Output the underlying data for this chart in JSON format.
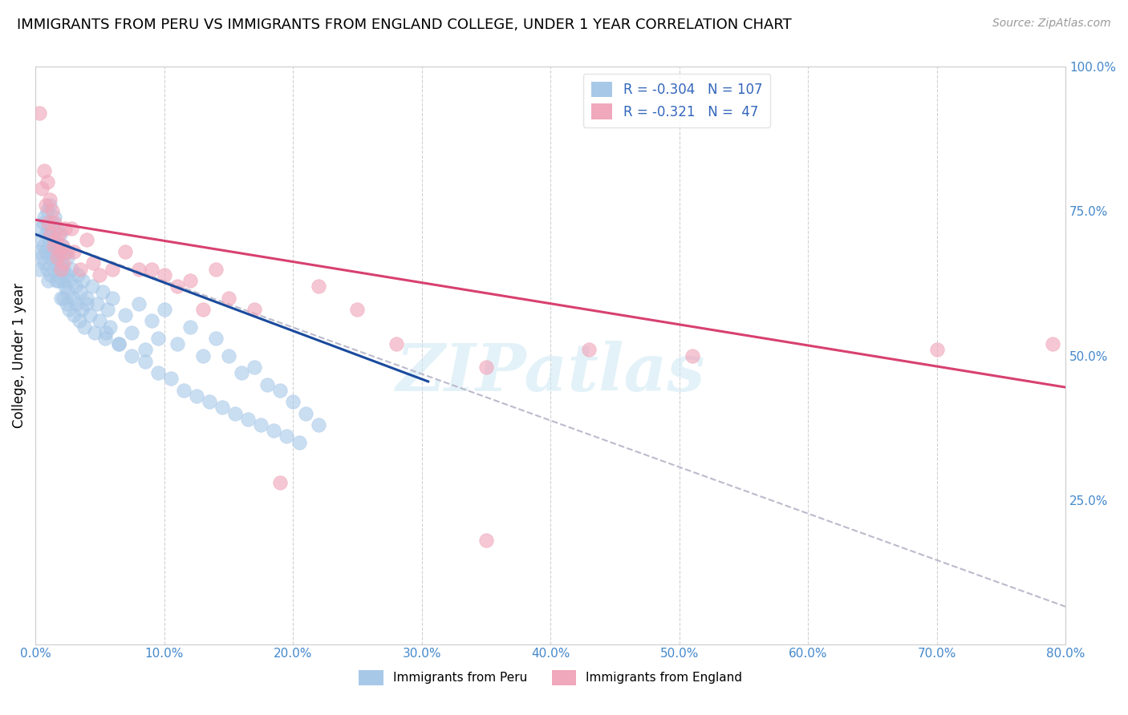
{
  "title": "IMMIGRANTS FROM PERU VS IMMIGRANTS FROM ENGLAND COLLEGE, UNDER 1 YEAR CORRELATION CHART",
  "source": "Source: ZipAtlas.com",
  "ylabel": "College, Under 1 year",
  "legend_label1": "Immigrants from Peru",
  "legend_label2": "Immigrants from England",
  "R1": -0.304,
  "N1": 107,
  "R2": -0.321,
  "N2": 47,
  "color_blue": "#A8C8E8",
  "color_pink": "#F0A8BC",
  "color_trend_blue": "#1A4A9C",
  "color_trend_pink": "#D84070",
  "color_trend_dashed": "#BBBBCC",
  "xlim": [
    0.0,
    0.8
  ],
  "ylim": [
    0.0,
    1.0
  ],
  "xtick_labels": [
    "0.0%",
    "10.0%",
    "20.0%",
    "30.0%",
    "40.0%",
    "50.0%",
    "60.0%",
    "70.0%",
    "80.0%"
  ],
  "xtick_vals": [
    0.0,
    0.1,
    0.2,
    0.3,
    0.4,
    0.5,
    0.6,
    0.7,
    0.8
  ],
  "ytick_labels": [
    "25.0%",
    "50.0%",
    "75.0%",
    "100.0%"
  ],
  "ytick_vals": [
    0.25,
    0.5,
    0.75,
    1.0
  ],
  "blue_dots_x": [
    0.002,
    0.003,
    0.004,
    0.005,
    0.005,
    0.006,
    0.006,
    0.007,
    0.007,
    0.008,
    0.008,
    0.009,
    0.009,
    0.01,
    0.01,
    0.01,
    0.011,
    0.011,
    0.012,
    0.012,
    0.013,
    0.013,
    0.014,
    0.014,
    0.015,
    0.015,
    0.016,
    0.016,
    0.017,
    0.017,
    0.018,
    0.018,
    0.019,
    0.019,
    0.02,
    0.02,
    0.021,
    0.021,
    0.022,
    0.022,
    0.023,
    0.023,
    0.024,
    0.024,
    0.025,
    0.025,
    0.026,
    0.027,
    0.028,
    0.029,
    0.03,
    0.031,
    0.032,
    0.033,
    0.034,
    0.035,
    0.036,
    0.037,
    0.038,
    0.04,
    0.042,
    0.044,
    0.046,
    0.048,
    0.05,
    0.052,
    0.054,
    0.056,
    0.058,
    0.06,
    0.065,
    0.07,
    0.075,
    0.08,
    0.085,
    0.09,
    0.095,
    0.1,
    0.11,
    0.12,
    0.13,
    0.14,
    0.15,
    0.16,
    0.17,
    0.18,
    0.19,
    0.2,
    0.21,
    0.22,
    0.04,
    0.055,
    0.065,
    0.075,
    0.085,
    0.095,
    0.105,
    0.115,
    0.125,
    0.135,
    0.145,
    0.155,
    0.165,
    0.175,
    0.185,
    0.195,
    0.205
  ],
  "blue_dots_y": [
    0.68,
    0.65,
    0.72,
    0.7,
    0.67,
    0.73,
    0.69,
    0.66,
    0.74,
    0.71,
    0.68,
    0.75,
    0.65,
    0.72,
    0.69,
    0.63,
    0.76,
    0.67,
    0.71,
    0.64,
    0.68,
    0.73,
    0.65,
    0.7,
    0.67,
    0.74,
    0.63,
    0.69,
    0.66,
    0.72,
    0.63,
    0.68,
    0.65,
    0.71,
    0.6,
    0.66,
    0.63,
    0.69,
    0.6,
    0.65,
    0.62,
    0.68,
    0.59,
    0.64,
    0.61,
    0.67,
    0.58,
    0.63,
    0.65,
    0.6,
    0.57,
    0.62,
    0.59,
    0.64,
    0.56,
    0.61,
    0.58,
    0.63,
    0.55,
    0.6,
    0.57,
    0.62,
    0.54,
    0.59,
    0.56,
    0.61,
    0.53,
    0.58,
    0.55,
    0.6,
    0.52,
    0.57,
    0.54,
    0.59,
    0.51,
    0.56,
    0.53,
    0.58,
    0.52,
    0.55,
    0.5,
    0.53,
    0.5,
    0.47,
    0.48,
    0.45,
    0.44,
    0.42,
    0.4,
    0.38,
    0.59,
    0.54,
    0.52,
    0.5,
    0.49,
    0.47,
    0.46,
    0.44,
    0.43,
    0.42,
    0.41,
    0.4,
    0.39,
    0.38,
    0.37,
    0.36,
    0.35
  ],
  "pink_dots_x": [
    0.003,
    0.005,
    0.007,
    0.008,
    0.009,
    0.01,
    0.011,
    0.012,
    0.013,
    0.014,
    0.015,
    0.016,
    0.017,
    0.018,
    0.019,
    0.02,
    0.021,
    0.022,
    0.023,
    0.025,
    0.028,
    0.03,
    0.035,
    0.04,
    0.045,
    0.05,
    0.06,
    0.07,
    0.08,
    0.09,
    0.1,
    0.11,
    0.12,
    0.13,
    0.14,
    0.15,
    0.17,
    0.19,
    0.22,
    0.25,
    0.28,
    0.35,
    0.43,
    0.51,
    0.7,
    0.79,
    0.35
  ],
  "pink_dots_y": [
    0.92,
    0.79,
    0.82,
    0.76,
    0.8,
    0.73,
    0.77,
    0.71,
    0.75,
    0.69,
    0.73,
    0.7,
    0.67,
    0.71,
    0.68,
    0.65,
    0.69,
    0.66,
    0.72,
    0.68,
    0.72,
    0.68,
    0.65,
    0.7,
    0.66,
    0.64,
    0.65,
    0.68,
    0.65,
    0.65,
    0.64,
    0.62,
    0.63,
    0.58,
    0.65,
    0.6,
    0.58,
    0.28,
    0.62,
    0.58,
    0.52,
    0.48,
    0.51,
    0.5,
    0.51,
    0.52,
    0.18
  ],
  "blue_trend_x_start": 0.0,
  "blue_trend_x_end": 0.305,
  "blue_trend_y_start": 0.71,
  "blue_trend_y_end": 0.455,
  "pink_trend_x_start": 0.0,
  "pink_trend_x_end": 0.8,
  "pink_trend_y_start": 0.735,
  "pink_trend_y_end": 0.445,
  "dashed_trend_x_start": 0.0,
  "dashed_trend_x_end": 0.8,
  "dashed_trend_y_start": 0.71,
  "dashed_trend_y_end": 0.065,
  "watermark": "ZIPatlas",
  "title_fontsize": 13,
  "axis_label_fontsize": 12,
  "tick_fontsize": 11,
  "legend_fontsize": 11,
  "source_fontsize": 10,
  "tick_color": "#4488CC",
  "right_ytick_labels": [
    "25.0%",
    "50.0%",
    "75.0%",
    "100.0%"
  ],
  "right_ytick_vals": [
    0.25,
    0.5,
    0.75,
    1.0
  ]
}
